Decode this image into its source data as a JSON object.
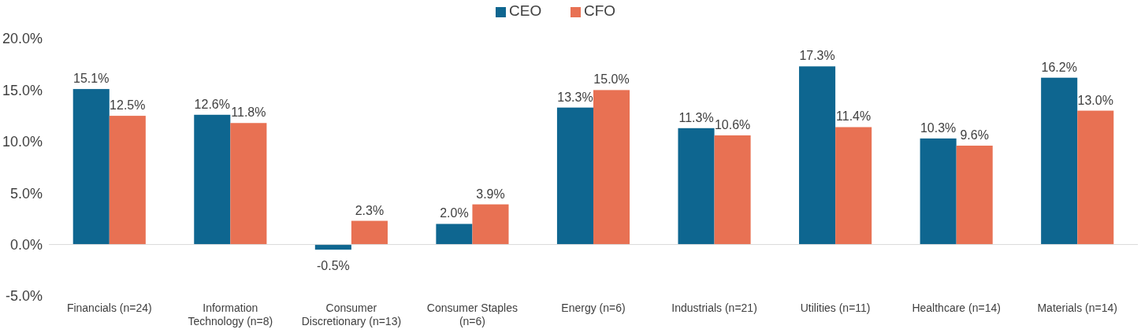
{
  "chart_data": {
    "type": "bar",
    "categories": [
      "Financials (n=24)",
      "Information Technology (n=8)",
      "Consumer Discretionary (n=13)",
      "Consumer Staples (n=6)",
      "Energy (n=6)",
      "Industrials (n=21)",
      "Utilities (n=11)",
      "Healthcare (n=14)",
      "Materials (n=14)"
    ],
    "series": [
      {
        "name": "CEO",
        "color": "#0e6690",
        "values": [
          15.1,
          12.6,
          -0.5,
          2.0,
          13.3,
          11.3,
          17.3,
          10.3,
          16.2
        ],
        "value_labels": [
          "15.1%",
          "12.6%",
          "-0.5%",
          "2.0%",
          "13.3%",
          "11.3%",
          "17.3%",
          "10.3%",
          "16.2%"
        ]
      },
      {
        "name": "CFO",
        "color": "#e87153",
        "values": [
          12.5,
          11.8,
          2.3,
          3.9,
          15.0,
          10.6,
          11.4,
          9.6,
          13.0
        ],
        "value_labels": [
          "12.5%",
          "11.8%",
          "2.3%",
          "3.9%",
          "15.0%",
          "10.6%",
          "11.4%",
          "9.6%",
          "13.0%"
        ]
      }
    ],
    "ylim": [
      -5,
      20
    ],
    "yticks": [
      {
        "value": -5,
        "label": "-5.0%"
      },
      {
        "value": 0,
        "label": "0.0%"
      },
      {
        "value": 5,
        "label": "5.0%"
      },
      {
        "value": 10,
        "label": "10.0%"
      },
      {
        "value": 15,
        "label": "15.0%"
      },
      {
        "value": 20,
        "label": "20.0%"
      }
    ],
    "legend": "top"
  }
}
